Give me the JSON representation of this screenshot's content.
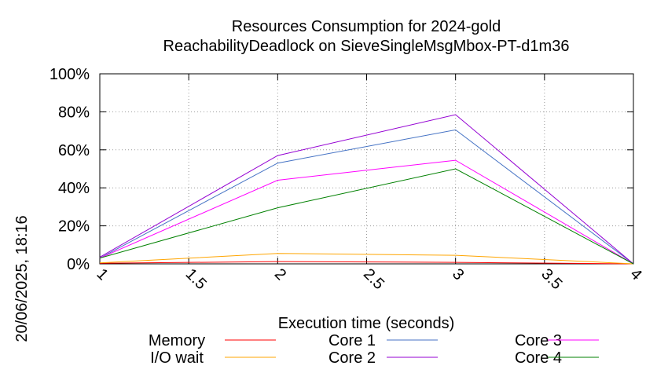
{
  "chart_data": {
    "type": "line",
    "title": "Resources Consumption for 2024-gold",
    "subtitle": "ReachabilityDeadlock on SieveSingleMsgMbox-PT-d1m36",
    "xlabel": "Execution time (seconds)",
    "ylabel": "",
    "side_label": "20/06/2025, 18:16",
    "xlim": [
      1,
      4
    ],
    "ylim": [
      0,
      100
    ],
    "x_ticks": [
      "1",
      "1.5",
      "2",
      "2.5",
      "3",
      "3.5",
      "4"
    ],
    "y_ticks": [
      "0%",
      "20%",
      "40%",
      "60%",
      "80%",
      "100%"
    ],
    "grid": true,
    "legend_position": "bottom",
    "x": [
      1,
      2,
      3,
      4
    ],
    "series": [
      {
        "name": "Memory",
        "color": "#ff0000",
        "values": [
          0.3,
          1.2,
          0.8,
          0
        ]
      },
      {
        "name": "I/O wait",
        "color": "#ffa500",
        "values": [
          0.5,
          5.5,
          4.5,
          0
        ]
      },
      {
        "name": "Core 1",
        "color": "#4472c4",
        "values": [
          3,
          53,
          70.5,
          0
        ]
      },
      {
        "name": "Core 2",
        "color": "#9400d3",
        "values": [
          3.5,
          57,
          78.5,
          0
        ]
      },
      {
        "name": "Core 3",
        "color": "#ff00ff",
        "values": [
          3,
          44,
          54.5,
          0
        ]
      },
      {
        "name": "Core 4",
        "color": "#008000",
        "values": [
          3,
          29.5,
          50,
          0
        ]
      }
    ]
  }
}
